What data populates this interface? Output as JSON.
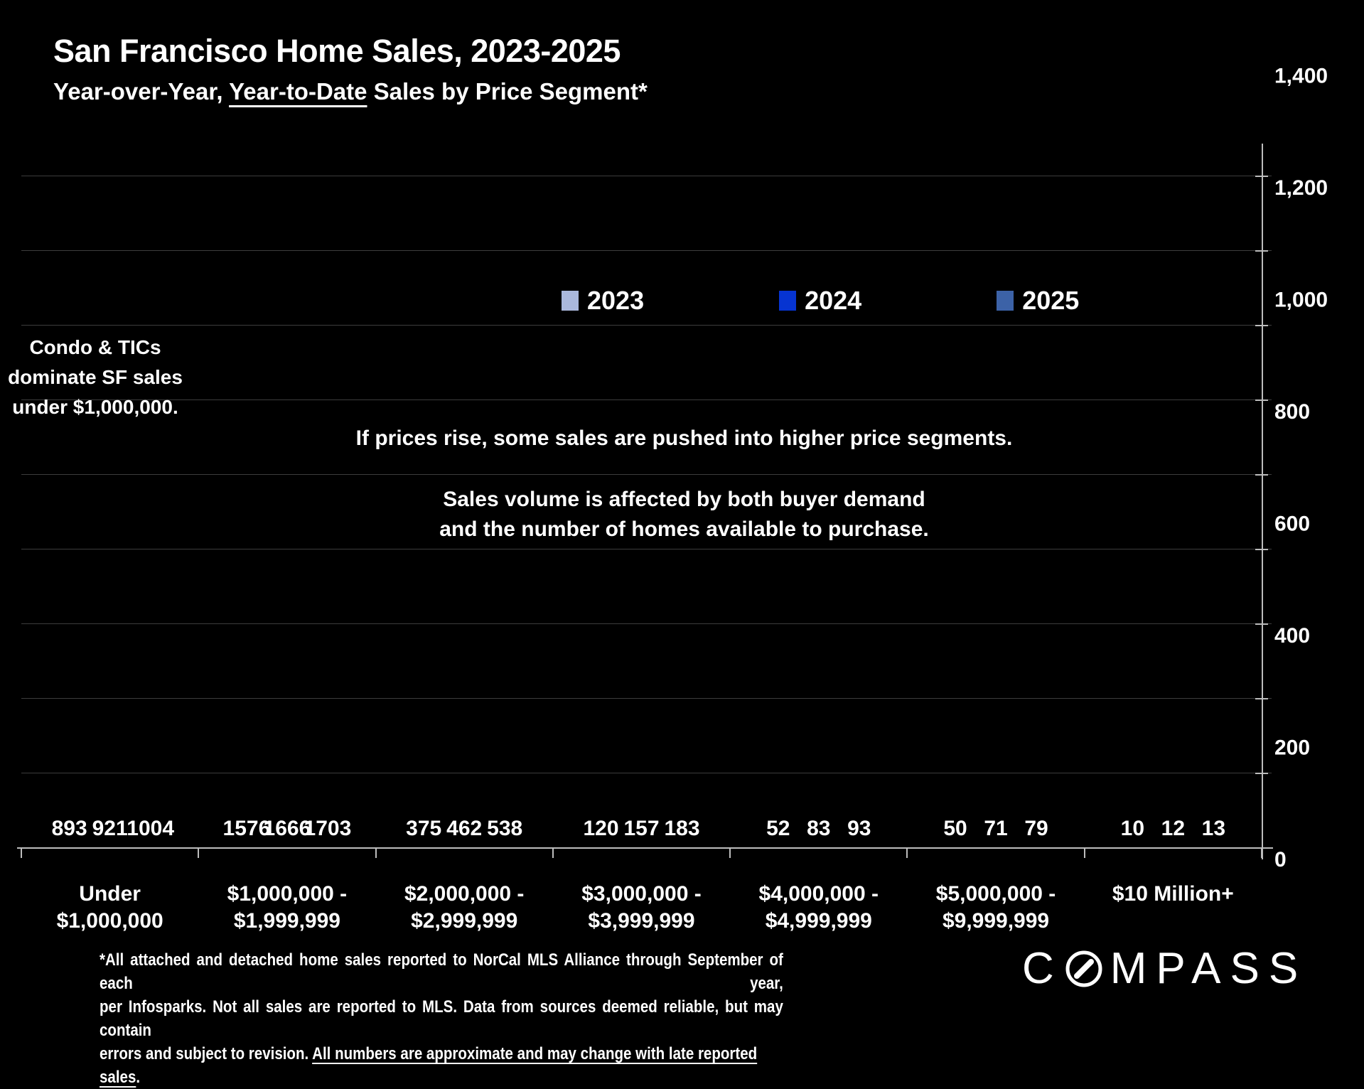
{
  "header": {
    "title": "San Francisco Home Sales, 2023-2025",
    "subtitle_prefix": "Year-over-Year, ",
    "subtitle_underlined": "Year-to-Date",
    "subtitle_suffix": " Sales by Price Segment*"
  },
  "annotations": {
    "condo_lines": [
      "Condo & TICs",
      "dominate SF sales",
      "under $1,000,000."
    ],
    "prices": "If prices rise, some sales are pushed into higher price segments.",
    "volume_line1": "Sales volume is affected by both buyer demand",
    "volume_line2": "and the number of homes available to purchase."
  },
  "chart_data": {
    "type": "bar",
    "title": "San Francisco Home Sales, 2023-2025",
    "subtitle": "Year-over-Year, Year-to-Date Sales by Price Segment*",
    "categories": [
      "Under $1,000,000",
      "$1,000,000 - $1,999,999",
      "$2,000,000 - $2,999,999",
      "$3,000,000 - $3,999,999",
      "$4,000,000 - $4,999,999",
      "$5,000,000 - $9,999,999",
      "$10 Million+"
    ],
    "category_label_lines": [
      [
        "Under",
        "$1,000,000"
      ],
      [
        "$1,000,000 -",
        "$1,999,999"
      ],
      [
        "$2,000,000 -",
        "$2,999,999"
      ],
      [
        "$3,000,000 -",
        "$3,999,999"
      ],
      [
        "$4,000,000 -",
        "$4,999,999"
      ],
      [
        "$5,000,000 -",
        "$9,999,999"
      ],
      [
        "$10 Million+"
      ]
    ],
    "series": [
      {
        "name": "2023",
        "color": "#aab8dc",
        "values": [
          893,
          1576,
          375,
          120,
          52,
          50,
          10
        ]
      },
      {
        "name": "2024",
        "color": "#0634d1",
        "values": [
          921,
          1666,
          462,
          157,
          83,
          71,
          12
        ]
      },
      {
        "name": "2025",
        "color": "#3c62a7",
        "values": [
          1004,
          1703,
          538,
          183,
          93,
          79,
          13
        ]
      }
    ],
    "xlabel": "",
    "ylabel": "",
    "ylim": [
      0,
      1800
    ],
    "ytick_step": 200,
    "grid": true,
    "value_labels": true,
    "legend_position": "top-center",
    "yaxis_side": "right",
    "background": "#000000",
    "text_color": "#ffffff"
  },
  "footnote": {
    "line1": "*All attached and detached home sales reported to NorCal MLS Alliance through September of each year,",
    "line2": "per Infosparks. Not all sales are reported to MLS. Data from sources deemed reliable, but may contain",
    "line3_prefix": "errors and subject to revision. ",
    "line3_underlined": "All numbers are approximate and may change with late reported sales",
    "line3_suffix": "."
  },
  "logo": {
    "prefix": "C",
    "suffix": "MPASS",
    "icon": "compass-circle-slash-icon"
  }
}
